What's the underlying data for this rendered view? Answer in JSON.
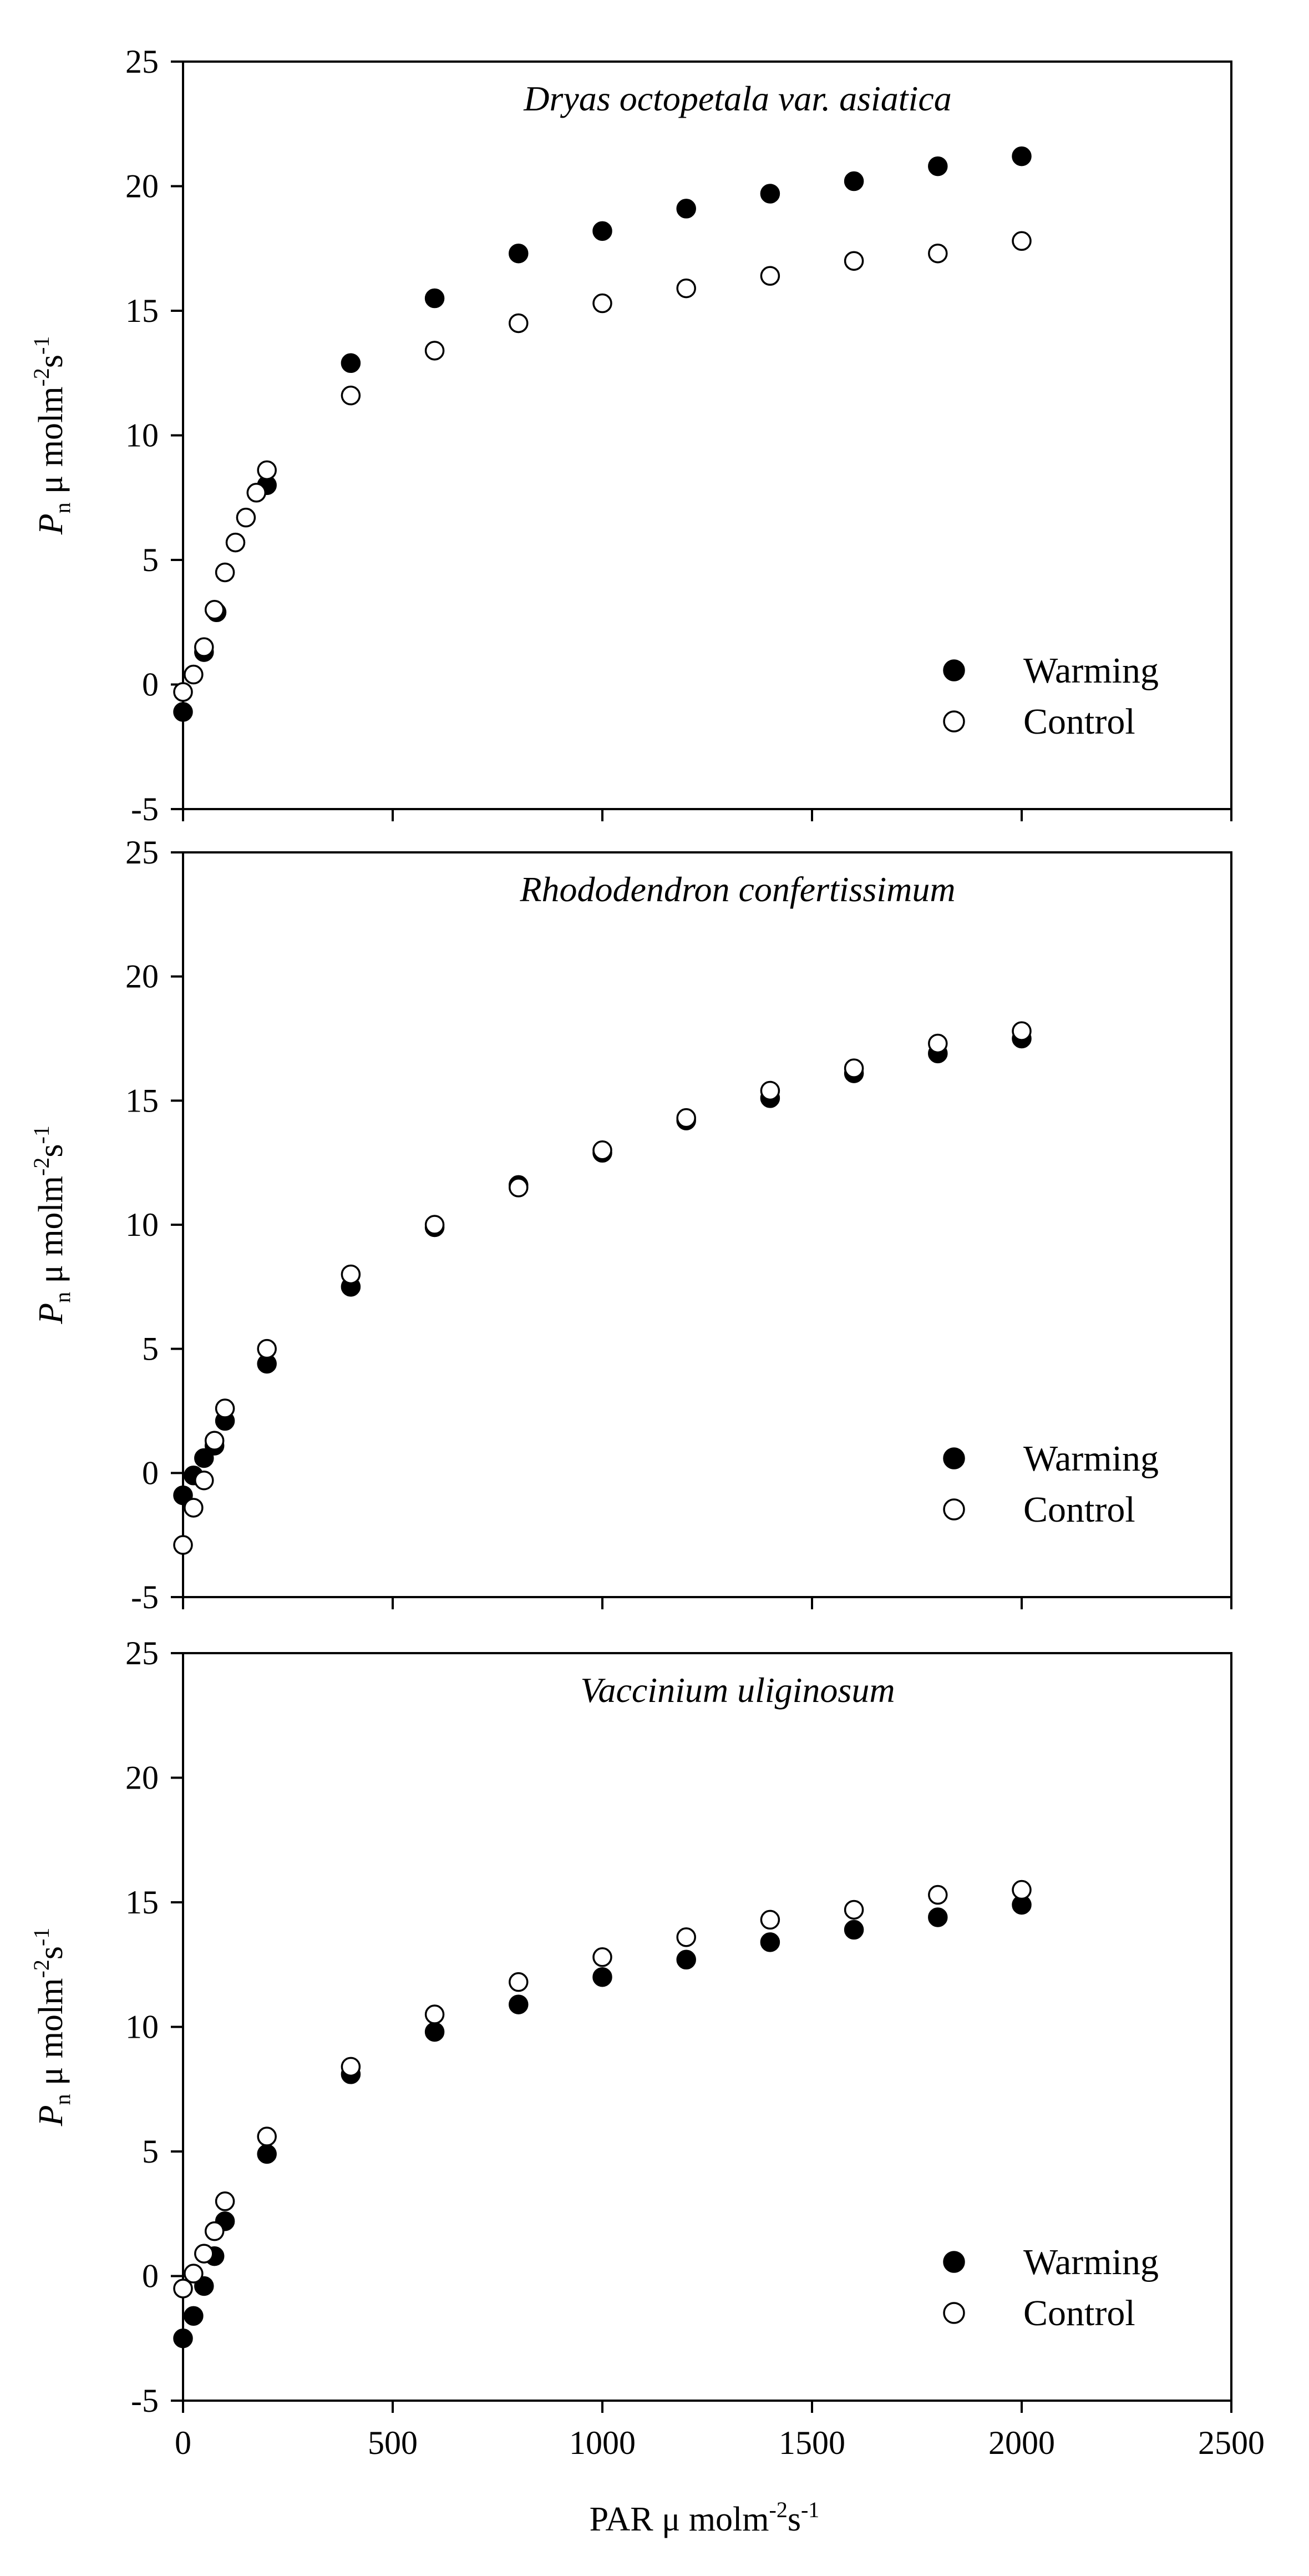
{
  "figure": {
    "xlabel": "PAR μ molm",
    "xlabel_sup1": "-2",
    "xlabel_mid": "s",
    "xlabel_sup2": "-1",
    "ylabel_main": "P",
    "ylabel_sub": "n",
    "ylabel_unit": " μ molm",
    "ylabel_sup1": "-2",
    "ylabel_mid": "s",
    "ylabel_sup2": "-1"
  },
  "chart_data": [
    {
      "type": "scatter",
      "title": "Dryas octopetala var. asiatica",
      "xlabel": "PAR μ molm-2s-1",
      "ylabel": "Pn μ molm-2s-1",
      "xlim": [
        0,
        2500
      ],
      "ylim": [
        -5,
        25
      ],
      "yticks": [
        -5,
        0,
        5,
        10,
        15,
        20,
        25
      ],
      "legend_position": "bottom-right",
      "series": [
        {
          "name": "Warming",
          "marker": "filled",
          "x": [
            0,
            50,
            80,
            200,
            400,
            600,
            800,
            1000,
            1200,
            1400,
            1600,
            1800,
            2000
          ],
          "y": [
            -1.1,
            1.3,
            2.9,
            8.0,
            12.9,
            15.5,
            17.3,
            18.2,
            19.1,
            19.7,
            20.2,
            20.8,
            21.2
          ]
        },
        {
          "name": "Control",
          "marker": "open",
          "x": [
            0,
            25,
            50,
            75,
            100,
            125,
            150,
            175,
            200,
            400,
            600,
            800,
            1000,
            1200,
            1400,
            1600,
            1800,
            2000
          ],
          "y": [
            -0.3,
            0.4,
            1.5,
            3.0,
            4.5,
            5.7,
            6.7,
            7.7,
            8.6,
            11.6,
            13.4,
            14.5,
            15.3,
            15.9,
            16.4,
            17.0,
            17.3,
            17.8
          ]
        }
      ]
    },
    {
      "type": "scatter",
      "title": "Rhododendron confertissimum",
      "xlabel": "PAR μ molm-2s-1",
      "ylabel": "Pn μ molm-2s-1",
      "xlim": [
        0,
        2500
      ],
      "ylim": [
        -5,
        25
      ],
      "yticks": [
        -5,
        0,
        5,
        10,
        15,
        20,
        25
      ],
      "legend_position": "bottom-right",
      "series": [
        {
          "name": "Warming",
          "marker": "filled",
          "x": [
            0,
            25,
            50,
            75,
            100,
            200,
            400,
            600,
            800,
            1000,
            1200,
            1400,
            1600,
            1800,
            2000
          ],
          "y": [
            -0.9,
            -0.1,
            0.6,
            1.1,
            2.1,
            4.4,
            7.5,
            9.9,
            11.6,
            12.9,
            14.2,
            15.1,
            16.1,
            16.9,
            17.5
          ]
        },
        {
          "name": "Control",
          "marker": "open",
          "x": [
            0,
            25,
            50,
            75,
            100,
            200,
            400,
            600,
            800,
            1000,
            1200,
            1400,
            1600,
            1800,
            2000
          ],
          "y": [
            -2.9,
            -1.4,
            -0.3,
            1.3,
            2.6,
            5.0,
            8.0,
            10.0,
            11.5,
            13.0,
            14.3,
            15.4,
            16.3,
            17.3,
            17.8
          ]
        }
      ]
    },
    {
      "type": "scatter",
      "title": "Vaccinium uliginosum",
      "xlabel": "PAR μ molm-2s-1",
      "ylabel": "Pn μ molm-2s-1",
      "xlim": [
        0,
        2500
      ],
      "ylim": [
        -5,
        25
      ],
      "xticks": [
        0,
        500,
        1000,
        1500,
        2000,
        2500
      ],
      "yticks": [
        -5,
        0,
        5,
        10,
        15,
        20,
        25
      ],
      "legend_position": "bottom-right",
      "series": [
        {
          "name": "Warming",
          "marker": "filled",
          "x": [
            0,
            25,
            50,
            75,
            100,
            200,
            400,
            600,
            800,
            1000,
            1200,
            1400,
            1600,
            1800,
            2000
          ],
          "y": [
            -2.5,
            -1.6,
            -0.4,
            0.8,
            2.2,
            4.9,
            8.1,
            9.8,
            10.9,
            12.0,
            12.7,
            13.4,
            13.9,
            14.4,
            14.9
          ]
        },
        {
          "name": "Control",
          "marker": "open",
          "x": [
            0,
            25,
            50,
            75,
            100,
            200,
            400,
            600,
            800,
            1000,
            1200,
            1400,
            1600,
            1800,
            2000
          ],
          "y": [
            -0.5,
            0.1,
            0.9,
            1.8,
            3.0,
            5.6,
            8.4,
            10.5,
            11.8,
            12.8,
            13.6,
            14.3,
            14.7,
            15.3,
            15.5
          ]
        }
      ]
    }
  ]
}
